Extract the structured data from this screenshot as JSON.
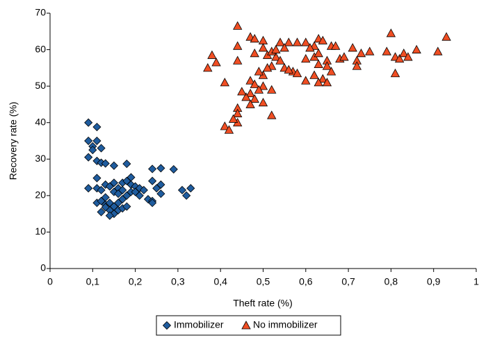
{
  "chart_data": {
    "type": "scatter",
    "x_label": "Theft rate (%)",
    "y_label": "Recovery rate (%)",
    "xlim": [
      0,
      1
    ],
    "xticks": [
      0,
      {
        "value": 0.1,
        "label": "0,1"
      },
      {
        "value": 0.2,
        "label": "0,2"
      },
      {
        "value": 0.3,
        "label": "0,3"
      },
      {
        "value": 0.4,
        "label": "0,4"
      },
      {
        "value": 0.5,
        "label": "0,5"
      },
      {
        "value": 0.6,
        "label": "0,6"
      },
      {
        "value": 0.7,
        "label": "0,7"
      },
      {
        "value": 0.8,
        "label": "0,8"
      },
      {
        "value": 0.9,
        "label": "0,9"
      },
      1
    ],
    "ylim": [
      0,
      70
    ],
    "yticks": [
      0,
      10,
      20,
      30,
      40,
      50,
      60,
      70
    ],
    "grid": false,
    "legend": "bottom",
    "series": [
      {
        "name": "Immobilizer",
        "color": "#1f5c9e",
        "marker": "diamond",
        "x": [
          0.09,
          0.11,
          0.09,
          0.11,
          0.1,
          0.1,
          0.09,
          0.12,
          0.11,
          0.12,
          0.13,
          0.15,
          0.18,
          0.24,
          0.26,
          0.29,
          0.09,
          0.11,
          0.11,
          0.12,
          0.13,
          0.14,
          0.15,
          0.15,
          0.16,
          0.17,
          0.18,
          0.19,
          0.19,
          0.2,
          0.21,
          0.22,
          0.24,
          0.25,
          0.26,
          0.26,
          0.23,
          0.24,
          0.24,
          0.31,
          0.32,
          0.33,
          0.11,
          0.12,
          0.13,
          0.13,
          0.14,
          0.14,
          0.15,
          0.15,
          0.16,
          0.16,
          0.17,
          0.17,
          0.18,
          0.18,
          0.19,
          0.2,
          0.12,
          0.14,
          0.13,
          0.16,
          0.17,
          0.21
        ],
        "values": [
          40,
          38.8,
          35,
          35,
          33.5,
          32.5,
          30.5,
          33,
          29.5,
          29,
          28.8,
          28.2,
          28.7,
          27.3,
          27.5,
          27.2,
          22,
          24.8,
          22,
          21.5,
          23,
          22.5,
          23.5,
          21,
          22,
          23.5,
          24,
          25,
          23,
          22.5,
          22,
          21.5,
          24,
          22,
          23,
          20.5,
          19,
          18.5,
          18,
          21.5,
          20,
          22,
          18,
          18.5,
          19.5,
          17.5,
          18,
          16,
          17,
          15,
          18,
          16,
          16.5,
          19,
          17,
          20,
          21,
          21,
          15.5,
          14.5,
          16.8,
          20.5,
          21.5,
          20
        ]
      },
      {
        "name": "No immobilizer",
        "color": "#f04e23",
        "marker": "triangle",
        "x": [
          0.44,
          0.37,
          0.38,
          0.39,
          0.41,
          0.44,
          0.44,
          0.47,
          0.48,
          0.5,
          0.5,
          0.48,
          0.53,
          0.54,
          0.56,
          0.58,
          0.6,
          0.62,
          0.63,
          0.64,
          0.66,
          0.67,
          0.68,
          0.71,
          0.72,
          0.73,
          0.75,
          0.79,
          0.8,
          0.81,
          0.82,
          0.83,
          0.84,
          0.86,
          0.91,
          0.93,
          0.81,
          0.72,
          0.69,
          0.65,
          0.62,
          0.6,
          0.6,
          0.62,
          0.63,
          0.65,
          0.64,
          0.66,
          0.65,
          0.63,
          0.57,
          0.55,
          0.52,
          0.51,
          0.5,
          0.49,
          0.47,
          0.48,
          0.5,
          0.49,
          0.47,
          0.46,
          0.45,
          0.48,
          0.5,
          0.52,
          0.52,
          0.47,
          0.44,
          0.44,
          0.44,
          0.41,
          0.42,
          0.43,
          0.51,
          0.52,
          0.53,
          0.55,
          0.54,
          0.56,
          0.58,
          0.61,
          0.63
        ],
        "values": [
          66.5,
          55,
          58.5,
          56.5,
          51,
          61,
          57,
          63.5,
          63,
          62.5,
          60.5,
          59,
          58,
          62,
          62,
          62,
          62,
          61,
          63,
          62.5,
          61,
          61,
          57.5,
          60.5,
          57,
          59,
          59.5,
          59.5,
          64.5,
          58,
          57.5,
          59,
          58,
          60,
          59.5,
          63.5,
          53.5,
          55.5,
          58,
          57,
          58,
          57.5,
          51.5,
          53,
          56,
          55.5,
          52,
          54,
          51,
          51,
          54,
          55,
          55.5,
          55,
          53,
          54,
          51.5,
          50.5,
          50,
          49,
          48,
          47,
          48.5,
          46.5,
          45.5,
          49,
          42,
          45,
          44,
          42.5,
          40,
          39,
          38,
          41,
          58.5,
          59.5,
          60,
          60.5,
          57,
          54.5,
          53.5,
          60.5,
          59
        ]
      }
    ]
  }
}
